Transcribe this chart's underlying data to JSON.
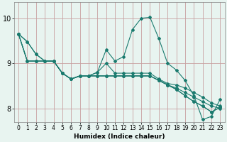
{
  "xlabel": "Humidex (Indice chaleur)",
  "bg_color": "#e8f4f0",
  "grid_color": "#c8a0a0",
  "line_color": "#1a7a6e",
  "xlim": [
    -0.5,
    23.5
  ],
  "ylim": [
    7.7,
    10.35
  ],
  "yticks": [
    8,
    9,
    10
  ],
  "xticks": [
    0,
    1,
    2,
    3,
    4,
    5,
    6,
    7,
    8,
    9,
    10,
    11,
    12,
    13,
    14,
    15,
    16,
    17,
    18,
    19,
    20,
    21,
    22,
    23
  ],
  "series": [
    [
      9.65,
      9.48,
      9.2,
      9.05,
      9.05,
      8.78,
      8.65,
      8.72,
      8.72,
      8.8,
      9.3,
      9.05,
      9.15,
      9.75,
      10.0,
      10.02,
      9.55,
      9.0,
      8.85,
      8.62,
      8.28,
      7.75,
      7.82,
      8.2
    ],
    [
      9.65,
      9.48,
      9.2,
      9.05,
      9.05,
      8.78,
      8.65,
      8.72,
      8.72,
      8.8,
      9.0,
      8.78,
      8.78,
      8.78,
      8.78,
      8.78,
      8.65,
      8.55,
      8.52,
      8.45,
      8.35,
      8.25,
      8.12,
      8.05
    ],
    [
      9.65,
      9.05,
      9.05,
      9.05,
      9.05,
      8.78,
      8.65,
      8.72,
      8.72,
      8.72,
      8.72,
      8.72,
      8.72,
      8.72,
      8.72,
      8.72,
      8.62,
      8.52,
      8.45,
      8.35,
      8.25,
      8.15,
      8.05,
      8.0
    ],
    [
      9.65,
      9.05,
      9.05,
      9.05,
      9.05,
      8.78,
      8.65,
      8.72,
      8.72,
      8.72,
      8.72,
      8.72,
      8.72,
      8.72,
      8.72,
      8.72,
      8.62,
      8.52,
      8.42,
      8.28,
      8.15,
      8.05,
      7.92,
      8.02
    ],
    [
      9.65,
      9.05,
      9.05,
      9.05,
      9.05,
      8.78,
      8.65,
      8.72,
      8.72,
      8.72,
      8.72,
      8.72,
      8.72,
      8.72,
      8.72,
      8.72,
      8.62,
      8.52,
      8.42,
      8.28,
      8.15,
      8.05,
      7.92,
      8.02
    ]
  ]
}
